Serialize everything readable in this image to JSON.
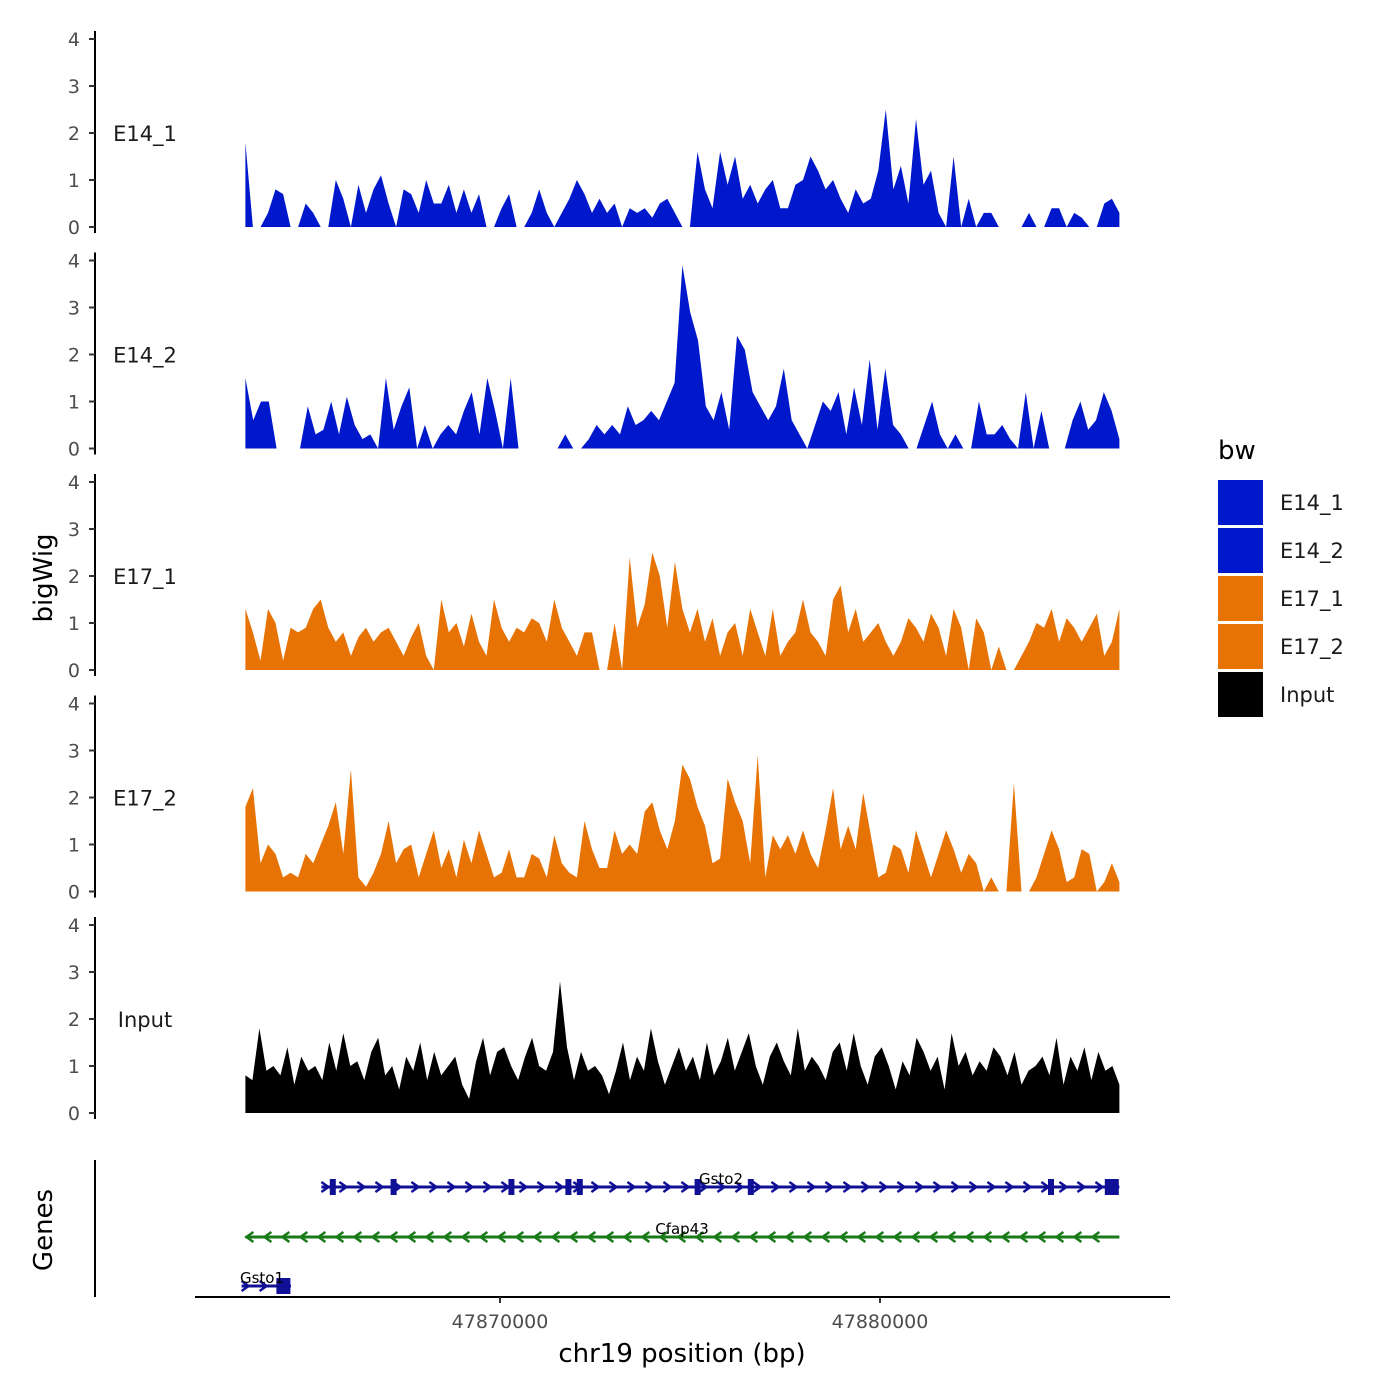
{
  "chart_data": {
    "type": "area",
    "title": "",
    "xlabel": "chr19 position (bp)",
    "ylabel": "bigWig",
    "genes_label": "Genes",
    "xlim": [
      47862200,
      47887200
    ],
    "data_range": [
      47863300,
      47886300
    ],
    "x_ticks": [
      {
        "value": 47870000,
        "label": "47870000"
      },
      {
        "value": 47880000,
        "label": "47880000"
      }
    ],
    "ylim": [
      0,
      4
    ],
    "y_ticks": [
      "0",
      "1",
      "2",
      "3",
      "4"
    ],
    "legend": {
      "title": "bw",
      "entries": [
        {
          "label": "E14_1",
          "color": "#0018cc"
        },
        {
          "label": "E14_2",
          "color": "#0018cc"
        },
        {
          "label": "E17_1",
          "color": "#e87305"
        },
        {
          "label": "E17_2",
          "color": "#e87305"
        },
        {
          "label": "Input",
          "color": "#000000"
        }
      ]
    },
    "series": [
      {
        "name": "E14_1",
        "color": "#0018cc",
        "values": [
          1.8,
          0,
          0,
          0.3,
          0.8,
          0.7,
          0,
          0,
          0.5,
          0.3,
          0,
          0,
          1,
          0.6,
          0,
          0.9,
          0.3,
          0.8,
          1.1,
          0.5,
          0,
          0.8,
          0.7,
          0.3,
          1,
          0.5,
          0.5,
          0.9,
          0.3,
          0.8,
          0.3,
          0.7,
          0,
          0,
          0.4,
          0.7,
          0,
          0,
          0.3,
          0.8,
          0.3,
          0,
          0.3,
          0.6,
          1.0,
          0.7,
          0.3,
          0.6,
          0.3,
          0.5,
          0,
          0.4,
          0.3,
          0.4,
          0.2,
          0.5,
          0.6,
          0.3,
          0,
          0,
          1.6,
          0.8,
          0.4,
          1.6,
          0.9,
          1.5,
          0.6,
          0.9,
          0.5,
          0.8,
          1.0,
          0.4,
          0.4,
          0.9,
          1.0,
          1.5,
          1.2,
          0.8,
          1.0,
          0.6,
          0.3,
          0.8,
          0.5,
          0.6,
          1.2,
          2.5,
          0.8,
          1.3,
          0.5,
          2.3,
          0.9,
          1.2,
          0.3,
          0,
          1.5,
          0,
          0.6,
          0,
          0.3,
          0.3,
          0,
          0,
          0,
          0,
          0.3,
          0,
          0,
          0.4,
          0.4,
          0,
          0.3,
          0.2,
          0,
          0,
          0.5,
          0.6,
          0.3
        ]
      },
      {
        "name": "E14_2",
        "color": "#0018cc",
        "values": [
          1.5,
          0.6,
          1.0,
          1.0,
          0,
          0,
          0,
          0,
          0.9,
          0.3,
          0.4,
          1.0,
          0.3,
          1.1,
          0.5,
          0.2,
          0.3,
          0,
          1.5,
          0.4,
          0.9,
          1.3,
          0,
          0.5,
          0,
          0.3,
          0.5,
          0.3,
          0.8,
          1.2,
          0.3,
          1.5,
          0.8,
          0,
          1.5,
          0,
          0,
          0,
          0,
          0,
          0,
          0.3,
          0,
          0,
          0.2,
          0.5,
          0.3,
          0.5,
          0.3,
          0.9,
          0.5,
          0.6,
          0.8,
          0.6,
          1.0,
          1.4,
          3.9,
          2.9,
          2.3,
          0.9,
          0.6,
          1.2,
          0.4,
          2.4,
          2.1,
          1.2,
          0.9,
          0.6,
          0.9,
          1.7,
          0.6,
          0.3,
          0,
          0.5,
          1.0,
          0.8,
          1.2,
          0.3,
          1.3,
          0.5,
          1.9,
          0.4,
          1.7,
          0.5,
          0.3,
          0,
          0,
          0.5,
          1.0,
          0.3,
          0,
          0.3,
          0,
          0,
          1.0,
          0.3,
          0.3,
          0.5,
          0.2,
          0,
          1.2,
          0,
          0.8,
          0,
          0,
          0,
          0.6,
          1.0,
          0.4,
          0.6,
          1.2,
          0.8,
          0.2
        ]
      },
      {
        "name": "E17_1",
        "color": "#e87305",
        "values": [
          1.3,
          0.8,
          0.2,
          1.3,
          1.0,
          0.2,
          0.9,
          0.8,
          0.9,
          1.3,
          1.5,
          0.9,
          0.6,
          0.8,
          0.3,
          0.7,
          0.9,
          0.6,
          0.8,
          0.9,
          0.6,
          0.3,
          0.7,
          1.0,
          0.3,
          0,
          1.5,
          0.8,
          1.0,
          0.5,
          1.2,
          0.6,
          0.3,
          1.5,
          0.9,
          0.6,
          0.9,
          0.8,
          1.1,
          1.0,
          0.6,
          1.5,
          0.9,
          0.6,
          0.3,
          0.8,
          0.8,
          0,
          0,
          1.0,
          0,
          2.4,
          0.9,
          1.4,
          2.5,
          2.0,
          0.9,
          2.3,
          1.3,
          0.8,
          1.3,
          0.6,
          1.1,
          0.3,
          0.8,
          1.0,
          0.3,
          1.3,
          0.8,
          0.3,
          1.3,
          0.3,
          0.6,
          0.8,
          1.5,
          0.8,
          0.6,
          0.3,
          1.5,
          1.8,
          0.8,
          1.3,
          0.6,
          0.8,
          1.0,
          0.6,
          0.3,
          0.6,
          1.1,
          0.9,
          0.6,
          1.2,
          0.9,
          0.3,
          1.3,
          0.9,
          0,
          1.1,
          0.8,
          0,
          0.5,
          0,
          0,
          0.3,
          0.6,
          1.0,
          0.9,
          1.3,
          0.6,
          1.1,
          0.9,
          0.6,
          0.9,
          1.2,
          0.3,
          0.6,
          1.3
        ]
      },
      {
        "name": "E17_2",
        "color": "#e87305",
        "values": [
          1.8,
          2.2,
          0.6,
          1.0,
          0.8,
          0.3,
          0.4,
          0.3,
          0.8,
          0.6,
          1.0,
          1.4,
          1.9,
          0.8,
          2.6,
          0.3,
          0.1,
          0.4,
          0.8,
          1.5,
          0.6,
          0.9,
          1.0,
          0.3,
          0.8,
          1.3,
          0.5,
          0.9,
          0.3,
          1.1,
          0.6,
          1.3,
          0.8,
          0.3,
          0.4,
          0.9,
          0.3,
          0.3,
          0.8,
          0.7,
          0.3,
          1.2,
          0.6,
          0.4,
          0.3,
          1.5,
          0.9,
          0.5,
          0.5,
          1.3,
          0.8,
          1.0,
          0.8,
          1.7,
          1.9,
          1.3,
          0.9,
          1.5,
          2.7,
          2.4,
          1.8,
          1.4,
          0.6,
          0.7,
          2.4,
          1.9,
          1.5,
          0.6,
          2.9,
          0.3,
          1.2,
          0.9,
          1.2,
          0.8,
          1.3,
          0.8,
          0.5,
          1.3,
          2.2,
          0.9,
          1.4,
          0.9,
          2.1,
          1.2,
          0.3,
          0.4,
          1.0,
          0.9,
          0.4,
          1.3,
          0.8,
          0.3,
          0.8,
          1.3,
          0.9,
          0.4,
          0.8,
          0.6,
          0,
          0.3,
          0,
          0,
          2.3,
          0,
          0,
          0.3,
          0.8,
          1.3,
          0.9,
          0.2,
          0.3,
          0.9,
          0.8,
          0,
          0.2,
          0.6,
          0.2
        ]
      },
      {
        "name": "Input",
        "color": "#000000",
        "values": [
          0.8,
          0.7,
          1.8,
          0.9,
          1.0,
          0.8,
          1.4,
          0.6,
          1.2,
          0.9,
          1.0,
          0.7,
          1.5,
          0.9,
          1.7,
          1.0,
          1.1,
          0.7,
          1.3,
          1.6,
          0.8,
          1.0,
          0.5,
          1.2,
          0.9,
          1.5,
          0.7,
          1.3,
          0.8,
          1.0,
          1.2,
          0.6,
          0.3,
          1.1,
          1.6,
          0.8,
          1.3,
          1.4,
          1.0,
          0.7,
          1.2,
          1.6,
          1.0,
          0.9,
          1.3,
          2.8,
          1.4,
          0.7,
          1.3,
          0.9,
          1.0,
          0.8,
          0.4,
          0.9,
          1.5,
          0.7,
          1.2,
          0.9,
          1.8,
          1.1,
          0.6,
          1.0,
          1.4,
          0.9,
          1.2,
          0.7,
          1.5,
          0.8,
          1.1,
          1.6,
          0.9,
          1.3,
          1.7,
          1.0,
          0.6,
          1.2,
          1.5,
          1.1,
          0.8,
          1.8,
          0.9,
          1.2,
          1.0,
          0.7,
          1.3,
          1.5,
          0.9,
          1.7,
          1.0,
          0.6,
          1.2,
          1.4,
          1.0,
          0.5,
          1.1,
          0.8,
          1.6,
          1.3,
          0.9,
          1.2,
          0.5,
          1.7,
          1.0,
          1.3,
          0.8,
          1.1,
          0.9,
          1.4,
          1.2,
          0.8,
          1.3,
          0.6,
          0.9,
          1.0,
          1.2,
          0.8,
          1.6,
          0.6,
          1.2,
          0.9,
          1.4,
          0.7,
          1.3,
          0.9,
          1.0,
          0.6
        ]
      }
    ],
    "genes": [
      {
        "name": "Gsto2",
        "strand": "+",
        "color": "#101096",
        "start": 47865300,
        "end": 47886300,
        "exons": [
          47865600,
          47867200,
          47870300,
          47871800,
          47872100,
          47875200,
          47876600,
          47884500,
          47886100
        ]
      },
      {
        "name": "Cfap43",
        "strand": "-",
        "color": "#1a7a1a",
        "start": 47863300,
        "end": 47886300,
        "exons": []
      },
      {
        "name": "Gsto1",
        "strand": "+",
        "color": "#101096",
        "start": 47863200,
        "end": 47864500,
        "exons": [
          47864300
        ]
      }
    ]
  }
}
